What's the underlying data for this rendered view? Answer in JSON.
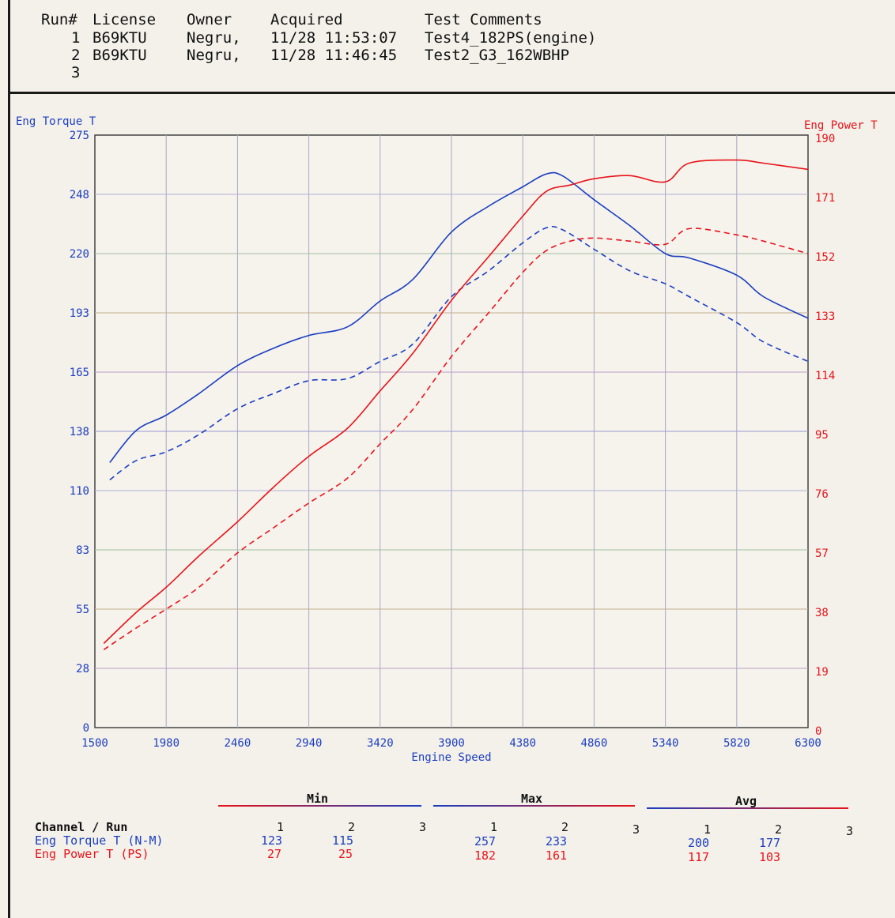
{
  "header": {
    "columns": [
      "Run#",
      "License",
      "Owner",
      "Acquired",
      "Test Comments"
    ],
    "rows": [
      {
        "run": "1",
        "license": "B69KTU",
        "owner": "Negru,",
        "acquired": "11/28 11:53:07",
        "comment": "Test4_182PS(engine)"
      },
      {
        "run": "2",
        "license": "B69KTU",
        "owner": "Negru,",
        "acquired": "11/28 11:46:45",
        "comment": "Test2_G3_162WBHP"
      },
      {
        "run": "3",
        "license": "",
        "owner": "",
        "acquired": "",
        "comment": ""
      }
    ]
  },
  "chart_data": {
    "type": "line",
    "xlabel": "Engine Speed",
    "ylabel_left": "Eng Torque T",
    "ylabel_right": "Eng Power T",
    "xlim": [
      1500,
      6300
    ],
    "ylim_left": [
      0,
      275
    ],
    "ylim_right": [
      0,
      190
    ],
    "x_ticks": [
      "1500",
      "1980",
      "2460",
      "2940",
      "3420",
      "3900",
      "4380",
      "4860",
      "5340",
      "5820",
      "6300"
    ],
    "y_left_ticks": [
      "0",
      "28",
      "55",
      "83",
      "110",
      "138",
      "165",
      "193",
      "220",
      "248",
      "275"
    ],
    "y_right_ticks": [
      "0",
      "19",
      "38",
      "57",
      "76",
      "95",
      "114",
      "133",
      "152",
      "171",
      "190"
    ],
    "grid": true,
    "colors": {
      "torque": "#1a3fc0",
      "power": "#e8141a"
    },
    "series": [
      {
        "axis": "left",
        "run": 1,
        "dash": false,
        "color": "#1a3fc0",
        "points": [
          [
            1600,
            123
          ],
          [
            1780,
            138
          ],
          [
            1980,
            145
          ],
          [
            2200,
            155
          ],
          [
            2460,
            168
          ],
          [
            2700,
            176
          ],
          [
            2940,
            182
          ],
          [
            3200,
            186
          ],
          [
            3420,
            198
          ],
          [
            3640,
            208
          ],
          [
            3900,
            230
          ],
          [
            4150,
            242
          ],
          [
            4380,
            251
          ],
          [
            4540,
            257
          ],
          [
            4650,
            256
          ],
          [
            4860,
            245
          ],
          [
            5100,
            233
          ],
          [
            5340,
            220
          ],
          [
            5500,
            218
          ],
          [
            5820,
            210
          ],
          [
            6000,
            200
          ],
          [
            6300,
            190
          ]
        ]
      },
      {
        "axis": "left",
        "run": 2,
        "dash": false,
        "color": "#1a3fc0",
        "dashed": true,
        "points": [
          [
            1600,
            115
          ],
          [
            1780,
            124
          ],
          [
            1980,
            128
          ],
          [
            2200,
            136
          ],
          [
            2460,
            148
          ],
          [
            2700,
            155
          ],
          [
            2940,
            161
          ],
          [
            3200,
            162
          ],
          [
            3420,
            170
          ],
          [
            3640,
            178
          ],
          [
            3900,
            200
          ],
          [
            4150,
            212
          ],
          [
            4380,
            225
          ],
          [
            4540,
            232
          ],
          [
            4650,
            231
          ],
          [
            4860,
            222
          ],
          [
            5100,
            212
          ],
          [
            5340,
            206
          ],
          [
            5500,
            200
          ],
          [
            5820,
            188
          ],
          [
            6000,
            179
          ],
          [
            6300,
            170
          ]
        ]
      },
      {
        "axis": "right",
        "run": 1,
        "dash": false,
        "color": "#e8141a",
        "points": [
          [
            1560,
            27
          ],
          [
            1780,
            37
          ],
          [
            1980,
            45
          ],
          [
            2200,
            55
          ],
          [
            2460,
            66
          ],
          [
            2700,
            77
          ],
          [
            2940,
            87
          ],
          [
            3200,
            96
          ],
          [
            3420,
            108
          ],
          [
            3640,
            120
          ],
          [
            3900,
            137
          ],
          [
            4150,
            151
          ],
          [
            4380,
            164
          ],
          [
            4540,
            172
          ],
          [
            4700,
            174
          ],
          [
            4860,
            176
          ],
          [
            5100,
            177
          ],
          [
            5340,
            175
          ],
          [
            5500,
            181
          ],
          [
            5820,
            182
          ],
          [
            6000,
            181
          ],
          [
            6300,
            179
          ]
        ]
      },
      {
        "axis": "right",
        "run": 2,
        "dash": false,
        "color": "#e8141a",
        "dashed": true,
        "points": [
          [
            1560,
            25
          ],
          [
            1780,
            32
          ],
          [
            1980,
            38
          ],
          [
            2200,
            45
          ],
          [
            2460,
            56
          ],
          [
            2700,
            64
          ],
          [
            2940,
            72
          ],
          [
            3200,
            80
          ],
          [
            3420,
            91
          ],
          [
            3640,
            102
          ],
          [
            3900,
            119
          ],
          [
            4150,
            133
          ],
          [
            4380,
            146
          ],
          [
            4540,
            153
          ],
          [
            4700,
            156
          ],
          [
            4860,
            157
          ],
          [
            5100,
            156
          ],
          [
            5340,
            155
          ],
          [
            5500,
            160
          ],
          [
            5820,
            158
          ],
          [
            6000,
            156
          ],
          [
            6300,
            152
          ]
        ]
      }
    ]
  },
  "stats": {
    "sections": [
      "Min",
      "Max",
      "Avg"
    ],
    "channel_label": "Channel / Run",
    "runs": [
      "1",
      "2",
      "3"
    ],
    "torque": {
      "label": "Eng Torque T (N-M)",
      "min": [
        "123",
        "115"
      ],
      "max": [
        "257",
        "233"
      ],
      "avg": [
        "200",
        "177"
      ]
    },
    "power": {
      "label": "Eng Power T (PS)",
      "min": [
        "27",
        "25"
      ],
      "max": [
        "182",
        "161"
      ],
      "avg": [
        "117",
        "103"
      ]
    }
  }
}
